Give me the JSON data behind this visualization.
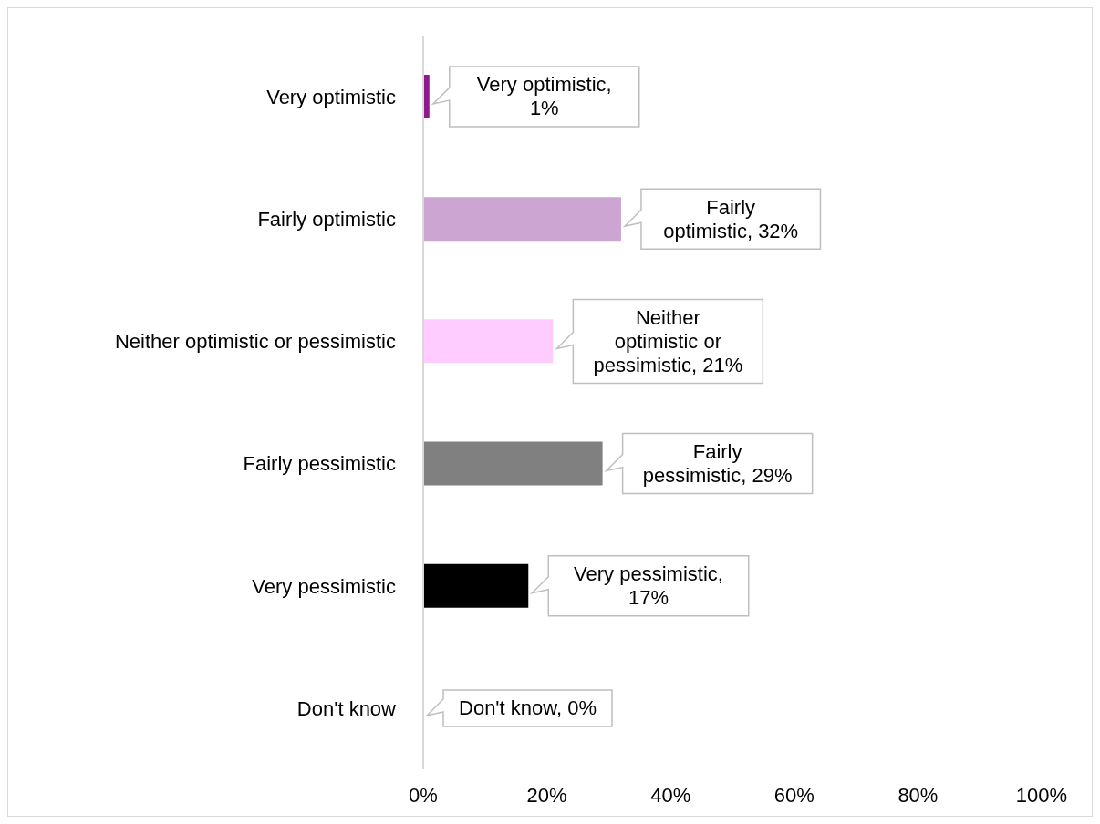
{
  "chart_data": {
    "type": "bar",
    "orientation": "horizontal",
    "categories": [
      "Very optimistic",
      "Fairly optimistic",
      "Neither optimistic or pessimistic",
      "Fairly pessimistic",
      "Very pessimistic",
      "Don't know"
    ],
    "values": [
      1,
      32,
      21,
      29,
      17,
      0
    ],
    "colors": [
      "#8e1a8e",
      "#cda5d2",
      "#ffccff",
      "#808080",
      "#000000",
      "#d9d9d9"
    ],
    "value_labels": [
      "Very optimistic, 1%",
      "Fairly optimistic, 32%",
      "Neither optimistic or pessimistic, 21%",
      "Fairly pessimistic, 29%",
      "Very pessimistic, 17%",
      "Don't know, 0%"
    ],
    "xlim": [
      0,
      100
    ],
    "xticks": [
      {
        "value": 0,
        "label": "0%"
      },
      {
        "value": 20,
        "label": "20%"
      },
      {
        "value": 40,
        "label": "40%"
      },
      {
        "value": 60,
        "label": "60%"
      },
      {
        "value": 80,
        "label": "80%"
      },
      {
        "value": 100,
        "label": "100%"
      }
    ],
    "grid": false,
    "legend": false
  }
}
